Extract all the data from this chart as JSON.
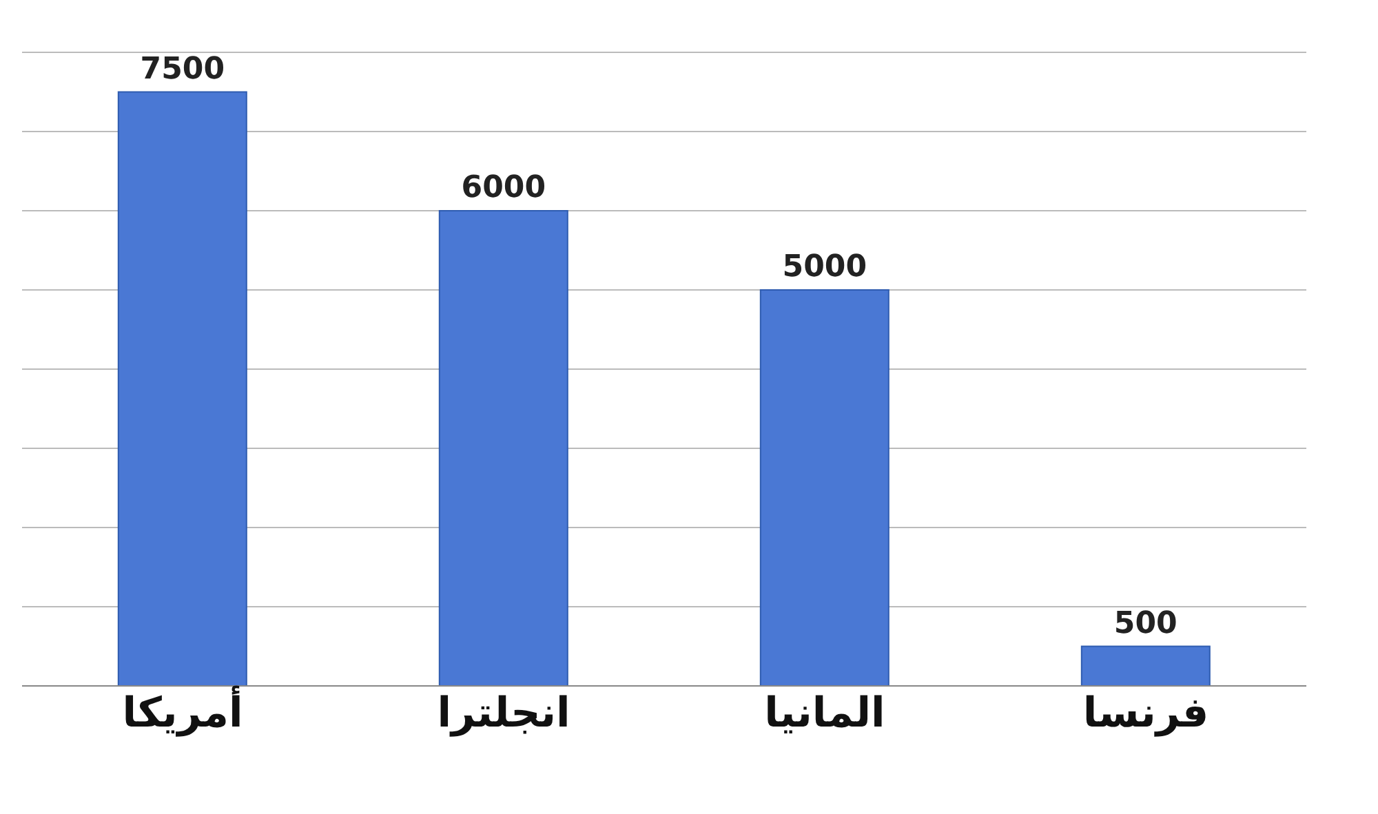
{
  "chart_data": {
    "type": "bar",
    "categories": [
      "أمريكا",
      "انجلترا",
      "المانيا",
      "فرنسا"
    ],
    "values": [
      7500,
      6000,
      5000,
      500
    ],
    "color": "#4a78d4",
    "data_labels": true,
    "ylim": [
      0,
      8000
    ],
    "grid": "y",
    "tick_labels": "x"
  }
}
